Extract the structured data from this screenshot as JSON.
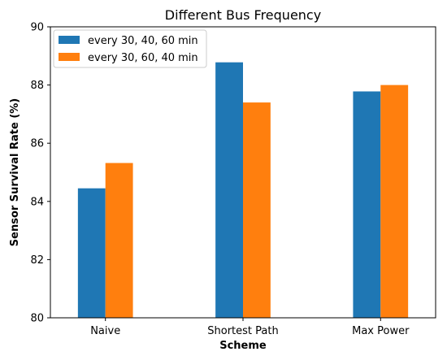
{
  "chart_data": {
    "type": "bar",
    "title": "Different Bus Frequency",
    "xlabel": "Scheme",
    "ylabel": "Sensor Survival Rate (%)",
    "categories": [
      "Naive",
      "Shortest Path",
      "Max Power"
    ],
    "series": [
      {
        "name": "every 30, 40, 60 min",
        "values": [
          84.45,
          88.78,
          87.78
        ],
        "color": "#1f77b4"
      },
      {
        "name": "every 30, 60, 40 min",
        "values": [
          85.32,
          87.4,
          88.0
        ],
        "color": "#ff7f0e"
      }
    ],
    "ylim": [
      80,
      90
    ],
    "yticks": [
      80,
      82,
      84,
      86,
      88,
      90
    ],
    "grid": false,
    "legend_position": "top-left"
  }
}
